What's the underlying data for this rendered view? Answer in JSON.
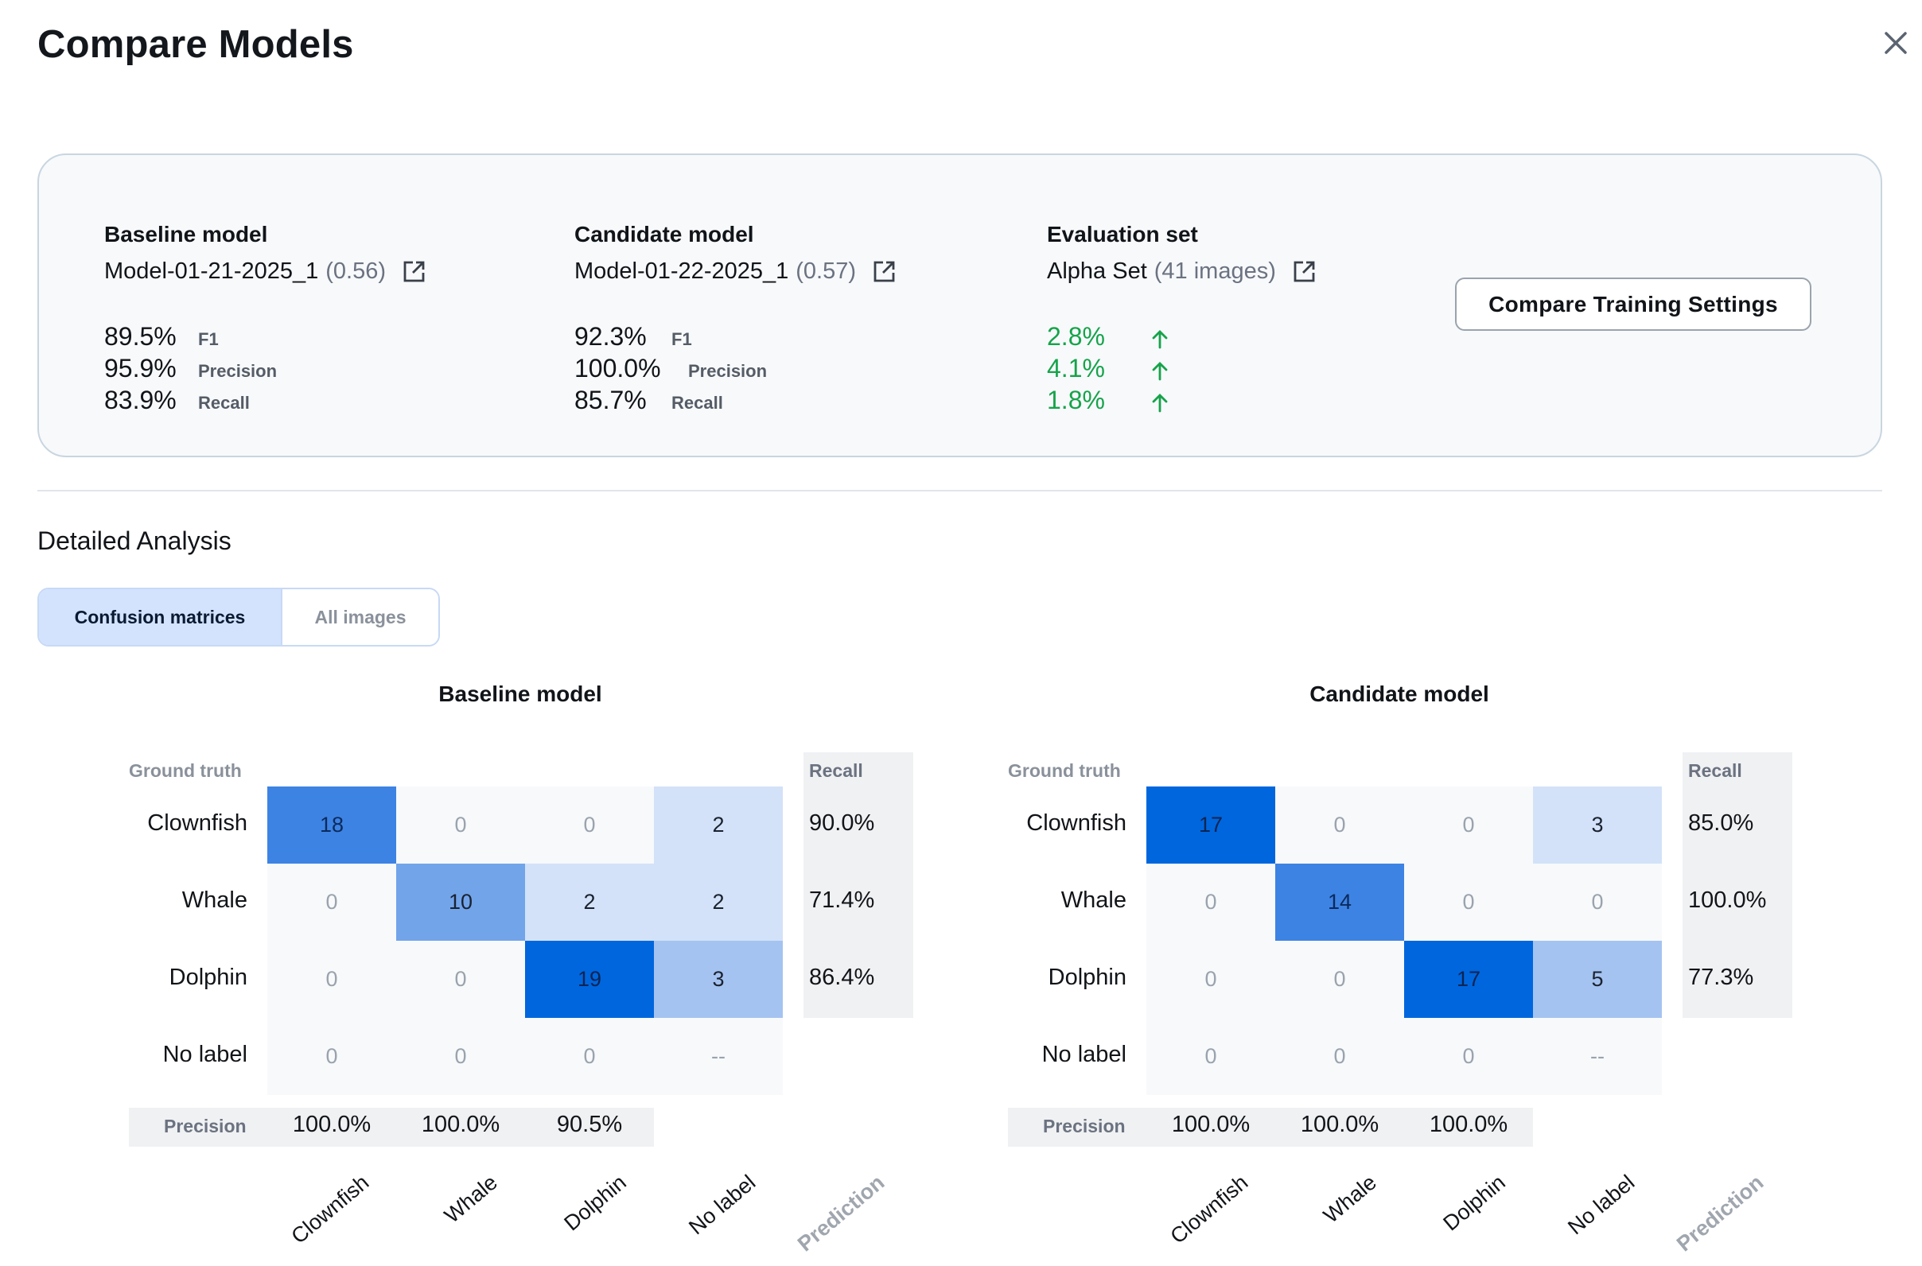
{
  "header": {
    "title": "Compare Models"
  },
  "colors": {
    "accent": "#0066dd",
    "positive": "#16a34a",
    "cell_scale": [
      "#f7f9fb",
      "#d3e2f8",
      "#a5c3f0",
      "#72a4ea",
      "#3d83e3",
      "#0066dd"
    ]
  },
  "summary": {
    "baseline": {
      "heading": "Baseline model",
      "model_name": "Model-01-21-2025_1",
      "model_score": "(0.56)",
      "metrics": [
        {
          "value": "89.5%",
          "label": "F1"
        },
        {
          "value": "95.9%",
          "label": "Precision"
        },
        {
          "value": "83.9%",
          "label": "Recall"
        }
      ]
    },
    "candidate": {
      "heading": "Candidate model",
      "model_name": "Model-01-22-2025_1",
      "model_score": "(0.57)",
      "metrics": [
        {
          "value": "92.3%",
          "label": "F1"
        },
        {
          "value": "100.0%",
          "label": "Precision"
        },
        {
          "value": "85.7%",
          "label": "Recall"
        }
      ]
    },
    "evaluation": {
      "heading": "Evaluation set",
      "set_name": "Alpha Set",
      "set_count": "(41 images)",
      "deltas": [
        "2.8%",
        "4.1%",
        "1.8%"
      ]
    },
    "compare_button": "Compare Training Settings"
  },
  "analysis": {
    "title": "Detailed Analysis",
    "tabs": [
      {
        "label": "Confusion matrices",
        "active": true
      },
      {
        "label": "All images",
        "active": false
      }
    ]
  },
  "matrices": [
    {
      "title": "Baseline model",
      "ground_truth_label": "Ground truth",
      "recall_label": "Recall",
      "precision_label": "Precision",
      "prediction_label": "Prediction",
      "rows": [
        "Clownfish",
        "Whale",
        "Dolphin",
        "No label"
      ],
      "columns": [
        "Clownfish",
        "Whale",
        "Dolphin",
        "No label"
      ],
      "cells": [
        [
          "18",
          "0",
          "0",
          "2"
        ],
        [
          "0",
          "10",
          "2",
          "2"
        ],
        [
          "0",
          "0",
          "19",
          "3"
        ],
        [
          "0",
          "0",
          "0",
          "--"
        ]
      ],
      "shades": [
        [
          4,
          0,
          0,
          1
        ],
        [
          0,
          3,
          1,
          1
        ],
        [
          0,
          0,
          5,
          2
        ],
        [
          0,
          0,
          0,
          0
        ]
      ],
      "recall": [
        "90.0%",
        "71.4%",
        "86.4%"
      ],
      "precision": [
        "100.0%",
        "100.0%",
        "90.5%"
      ]
    },
    {
      "title": "Candidate model",
      "ground_truth_label": "Ground truth",
      "recall_label": "Recall",
      "precision_label": "Precision",
      "prediction_label": "Prediction",
      "rows": [
        "Clownfish",
        "Whale",
        "Dolphin",
        "No label"
      ],
      "columns": [
        "Clownfish",
        "Whale",
        "Dolphin",
        "No label"
      ],
      "cells": [
        [
          "17",
          "0",
          "0",
          "3"
        ],
        [
          "0",
          "14",
          "0",
          "0"
        ],
        [
          "0",
          "0",
          "17",
          "5"
        ],
        [
          "0",
          "0",
          "0",
          "--"
        ]
      ],
      "shades": [
        [
          5,
          0,
          0,
          1
        ],
        [
          0,
          4,
          0,
          0
        ],
        [
          0,
          0,
          5,
          2
        ],
        [
          0,
          0,
          0,
          0
        ]
      ],
      "recall": [
        "85.0%",
        "100.0%",
        "77.3%"
      ],
      "precision": [
        "100.0%",
        "100.0%",
        "100.0%"
      ]
    }
  ]
}
